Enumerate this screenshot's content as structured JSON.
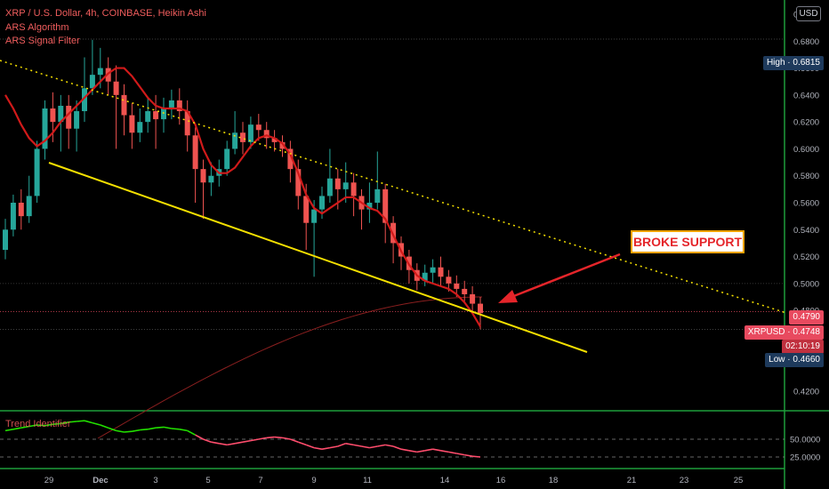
{
  "legend": {
    "symbol_line": "XRP / U.S. Dollar, 4h, COINBASE, Heikin Ashi",
    "indicator_1": "ARS Algorithm",
    "indicator_2": "ARS Signal Filter"
  },
  "currency_button": "USD",
  "price_tags": {
    "high": "High · 0.6815",
    "current_price": "0.4790",
    "symbol_price": "XRPUSD · 0.4748",
    "countdown": "02:10:19",
    "low": "Low · 0.4660"
  },
  "annotation": {
    "text": "BROKE SUPPORT"
  },
  "lower_pane": {
    "title": "Trend Identifier"
  },
  "colors": {
    "up": "#26a69a",
    "down": "#ef5350",
    "support_line": "#f5e000",
    "resistance_line": "#f5e000",
    "callout_border": "#f4a300",
    "callout_text": "#e5252a",
    "arrow": "#e5252a",
    "ars_line": "#d11a1a",
    "ma_line": "#8a1f1f",
    "trend_up": "#22e000",
    "trend_down": "#ff4d6d",
    "pane_border": "#1e9e3a"
  },
  "chart_data": {
    "type": "candlestick",
    "y_axis": {
      "min": 0.42,
      "max": 0.7,
      "ticks": [
        "0.7000",
        "0.6800",
        "0.6600",
        "0.6400",
        "0.6200",
        "0.6000",
        "0.5800",
        "0.5600",
        "0.5400",
        "0.5200",
        "0.5000",
        "0.4800",
        "0.4600",
        "0.4400",
        "0.4200"
      ]
    },
    "x_axis": {
      "ticks": [
        "29",
        "Dec",
        "3",
        "5",
        "7",
        "9",
        "11",
        "14",
        "16",
        "18",
        "21",
        "23",
        "25"
      ]
    },
    "lower_pane_ticks": [
      "50.0000",
      "25.0000"
    ],
    "series": [
      {
        "name": "XRP / U.S. Dollar",
        "type": "heikin-ashi",
        "approximate": true,
        "candles": [
          {
            "o": 0.525,
            "c": 0.54,
            "h": 0.548,
            "l": 0.518
          },
          {
            "o": 0.54,
            "c": 0.56,
            "h": 0.566,
            "l": 0.535
          },
          {
            "o": 0.56,
            "c": 0.55,
            "h": 0.57,
            "l": 0.54
          },
          {
            "o": 0.55,
            "c": 0.565,
            "h": 0.58,
            "l": 0.545
          },
          {
            "o": 0.565,
            "c": 0.6,
            "h": 0.606,
            "l": 0.56
          },
          {
            "o": 0.6,
            "c": 0.63,
            "h": 0.636,
            "l": 0.592
          },
          {
            "o": 0.63,
            "c": 0.62,
            "h": 0.642,
            "l": 0.605
          },
          {
            "o": 0.62,
            "c": 0.632,
            "h": 0.64,
            "l": 0.598
          },
          {
            "o": 0.632,
            "c": 0.615,
            "h": 0.64,
            "l": 0.6
          },
          {
            "o": 0.615,
            "c": 0.628,
            "h": 0.636,
            "l": 0.598
          },
          {
            "o": 0.628,
            "c": 0.645,
            "h": 0.668,
            "l": 0.62
          },
          {
            "o": 0.645,
            "c": 0.655,
            "h": 0.681,
            "l": 0.64
          },
          {
            "o": 0.655,
            "c": 0.66,
            "h": 0.675,
            "l": 0.645
          },
          {
            "o": 0.66,
            "c": 0.65,
            "h": 0.668,
            "l": 0.64
          },
          {
            "o": 0.65,
            "c": 0.64,
            "h": 0.662,
            "l": 0.6
          },
          {
            "o": 0.64,
            "c": 0.625,
            "h": 0.648,
            "l": 0.61
          },
          {
            "o": 0.625,
            "c": 0.612,
            "h": 0.634,
            "l": 0.6
          },
          {
            "o": 0.612,
            "c": 0.62,
            "h": 0.63,
            "l": 0.605
          },
          {
            "o": 0.62,
            "c": 0.628,
            "h": 0.638,
            "l": 0.612
          },
          {
            "o": 0.628,
            "c": 0.622,
            "h": 0.64,
            "l": 0.6
          },
          {
            "o": 0.622,
            "c": 0.63,
            "h": 0.638,
            "l": 0.612
          },
          {
            "o": 0.63,
            "c": 0.636,
            "h": 0.644,
            "l": 0.622
          },
          {
            "o": 0.636,
            "c": 0.628,
            "h": 0.645,
            "l": 0.618
          },
          {
            "o": 0.628,
            "c": 0.61,
            "h": 0.636,
            "l": 0.598
          },
          {
            "o": 0.61,
            "c": 0.585,
            "h": 0.616,
            "l": 0.56
          },
          {
            "o": 0.585,
            "c": 0.575,
            "h": 0.592,
            "l": 0.548
          },
          {
            "o": 0.575,
            "c": 0.58,
            "h": 0.59,
            "l": 0.565
          },
          {
            "o": 0.58,
            "c": 0.585,
            "h": 0.592,
            "l": 0.572
          },
          {
            "o": 0.585,
            "c": 0.6,
            "h": 0.606,
            "l": 0.58
          },
          {
            "o": 0.6,
            "c": 0.612,
            "h": 0.628,
            "l": 0.596
          },
          {
            "o": 0.612,
            "c": 0.605,
            "h": 0.62,
            "l": 0.596
          },
          {
            "o": 0.605,
            "c": 0.618,
            "h": 0.624,
            "l": 0.6
          },
          {
            "o": 0.618,
            "c": 0.614,
            "h": 0.626,
            "l": 0.606
          },
          {
            "o": 0.614,
            "c": 0.608,
            "h": 0.62,
            "l": 0.6
          },
          {
            "o": 0.608,
            "c": 0.605,
            "h": 0.614,
            "l": 0.598
          },
          {
            "o": 0.605,
            "c": 0.6,
            "h": 0.61,
            "l": 0.594
          },
          {
            "o": 0.6,
            "c": 0.585,
            "h": 0.606,
            "l": 0.575
          },
          {
            "o": 0.585,
            "c": 0.565,
            "h": 0.592,
            "l": 0.555
          },
          {
            "o": 0.565,
            "c": 0.545,
            "h": 0.574,
            "l": 0.525
          },
          {
            "o": 0.545,
            "c": 0.555,
            "h": 0.562,
            "l": 0.505
          },
          {
            "o": 0.555,
            "c": 0.565,
            "h": 0.572,
            "l": 0.548
          },
          {
            "o": 0.565,
            "c": 0.578,
            "h": 0.6,
            "l": 0.56
          },
          {
            "o": 0.578,
            "c": 0.57,
            "h": 0.585,
            "l": 0.555
          },
          {
            "o": 0.57,
            "c": 0.575,
            "h": 0.59,
            "l": 0.56
          },
          {
            "o": 0.575,
            "c": 0.565,
            "h": 0.582,
            "l": 0.55
          },
          {
            "o": 0.565,
            "c": 0.555,
            "h": 0.57,
            "l": 0.54
          },
          {
            "o": 0.555,
            "c": 0.56,
            "h": 0.575,
            "l": 0.545
          },
          {
            "o": 0.56,
            "c": 0.57,
            "h": 0.598,
            "l": 0.555
          },
          {
            "o": 0.57,
            "c": 0.545,
            "h": 0.574,
            "l": 0.53
          },
          {
            "o": 0.545,
            "c": 0.53,
            "h": 0.55,
            "l": 0.515
          },
          {
            "o": 0.53,
            "c": 0.52,
            "h": 0.535,
            "l": 0.51
          },
          {
            "o": 0.52,
            "c": 0.51,
            "h": 0.525,
            "l": 0.5
          },
          {
            "o": 0.51,
            "c": 0.502,
            "h": 0.515,
            "l": 0.495
          },
          {
            "o": 0.502,
            "c": 0.508,
            "h": 0.514,
            "l": 0.498
          },
          {
            "o": 0.508,
            "c": 0.512,
            "h": 0.518,
            "l": 0.5
          },
          {
            "o": 0.512,
            "c": 0.505,
            "h": 0.52,
            "l": 0.498
          },
          {
            "o": 0.505,
            "c": 0.5,
            "h": 0.51,
            "l": 0.494
          },
          {
            "o": 0.5,
            "c": 0.496,
            "h": 0.506,
            "l": 0.49
          },
          {
            "o": 0.496,
            "c": 0.492,
            "h": 0.502,
            "l": 0.486
          },
          {
            "o": 0.492,
            "c": 0.485,
            "h": 0.498,
            "l": 0.478
          },
          {
            "o": 0.485,
            "c": 0.478,
            "h": 0.49,
            "l": 0.466
          }
        ]
      },
      {
        "name": "ARS Algorithm",
        "type": "line",
        "approximate": true,
        "values": [
          0.64,
          0.63,
          0.618,
          0.608,
          0.602,
          0.606,
          0.612,
          0.62,
          0.626,
          0.632,
          0.638,
          0.644,
          0.65,
          0.656,
          0.66,
          0.66,
          0.654,
          0.646,
          0.638,
          0.632,
          0.63,
          0.63,
          0.63,
          0.628,
          0.618,
          0.6,
          0.588,
          0.582,
          0.582,
          0.586,
          0.594,
          0.602,
          0.608,
          0.61,
          0.608,
          0.604,
          0.596,
          0.582,
          0.566,
          0.556,
          0.552,
          0.556,
          0.56,
          0.564,
          0.564,
          0.56,
          0.556,
          0.554,
          0.548,
          0.536,
          0.524,
          0.514,
          0.506,
          0.502,
          0.5,
          0.498,
          0.496,
          0.492,
          0.486,
          0.478,
          0.468
        ]
      },
      {
        "name": "Trend Identifier",
        "pane": "lower",
        "approximate": true,
        "values": [
          62,
          64,
          66,
          68,
          70,
          69,
          71,
          72,
          74,
          75,
          76,
          73,
          70,
          66,
          62,
          60,
          61,
          63,
          64,
          66,
          67,
          65,
          64,
          62,
          56,
          50,
          46,
          44,
          42,
          44,
          46,
          48,
          50,
          52,
          53,
          52,
          50,
          46,
          42,
          38,
          36,
          38,
          40,
          44,
          42,
          40,
          38,
          40,
          42,
          40,
          36,
          34,
          32,
          34,
          36,
          34,
          32,
          30,
          28,
          26,
          25
        ]
      }
    ]
  }
}
